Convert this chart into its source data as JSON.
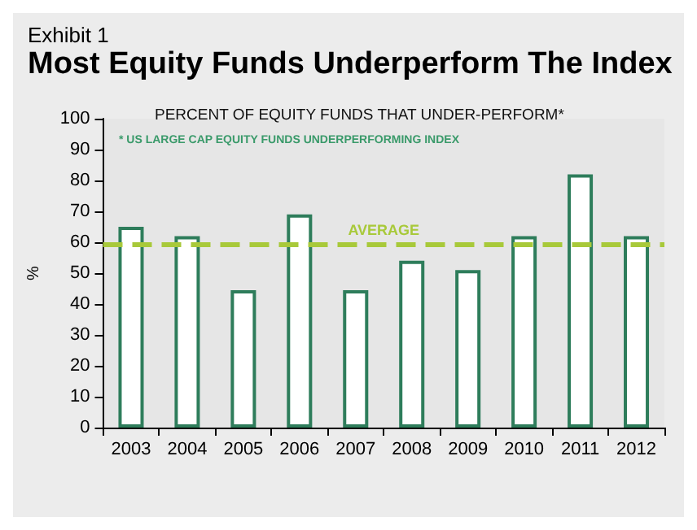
{
  "chart_data": {
    "type": "bar",
    "title": "Most Equity Funds Underperform The Index",
    "subtitle": "PERCENT OF EQUITY FUNDS THAT UNDER-PERFORM*",
    "ylabel": "%",
    "annotations": [
      "Exhibit 1",
      "* US LARGE CAP EQUITY FUNDS UNDERPERFORMING INDEX"
    ],
    "categories": [
      "2003",
      "2004",
      "2005",
      "2006",
      "2007",
      "2008",
      "2009",
      "2010",
      "2011",
      "2012"
    ],
    "values": [
      65,
      62,
      44.5,
      69,
      44.5,
      54,
      51,
      62,
      82,
      62
    ],
    "color": "#2e7d5b",
    "ylim": [
      0,
      100
    ],
    "yticks": [
      0,
      10,
      20,
      30,
      40,
      50,
      60,
      70,
      80,
      90,
      100
    ],
    "grid": false,
    "ref_lines": [
      {
        "axis": "y",
        "value": 59.5,
        "label": "AVERAGE",
        "color": "#a8c93a",
        "line_style": "dashed"
      }
    ]
  }
}
